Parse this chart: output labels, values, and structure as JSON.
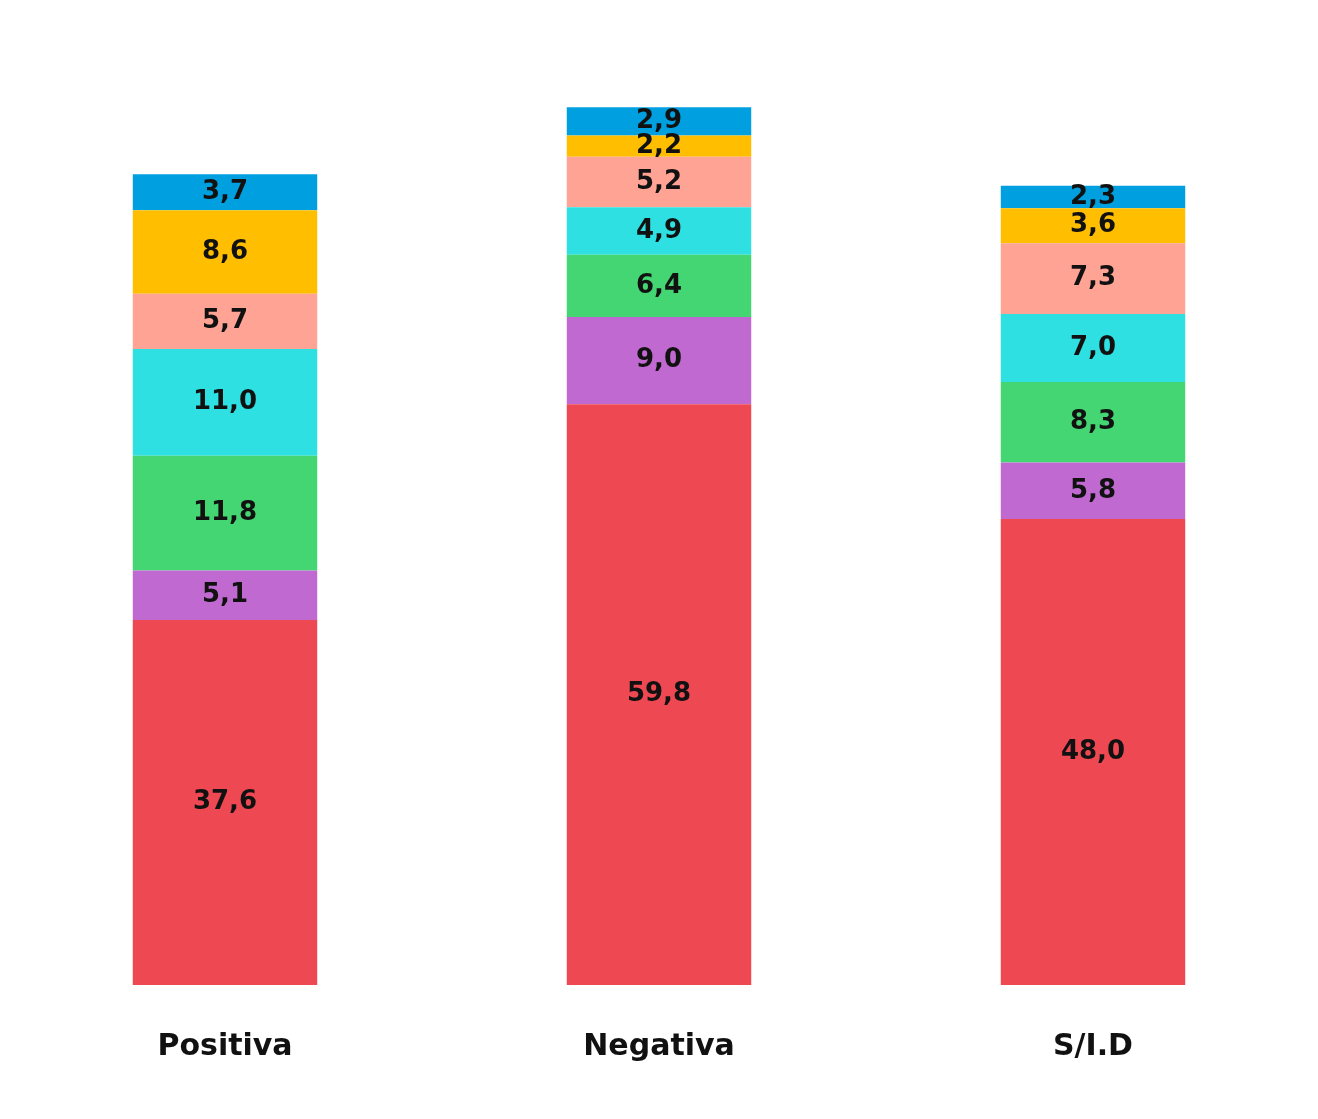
{
  "chart_data": {
    "type": "bar",
    "stacked": true,
    "categories": [
      "Positiva",
      "Negativa",
      "S/I.D"
    ],
    "series": [
      {
        "color": "#ee4953",
        "values": [
          37.6,
          59.8,
          48.0
        ],
        "value_labels": [
          "37,6",
          "59,8",
          "48,0"
        ]
      },
      {
        "color": "#bf69d1",
        "values": [
          5.1,
          9.0,
          5.8
        ],
        "value_labels": [
          "5,1",
          "9,0",
          "5,8"
        ]
      },
      {
        "color": "#43d672",
        "values": [
          11.8,
          6.4,
          8.3
        ],
        "value_labels": [
          "11,8",
          "6,4",
          "8,3"
        ]
      },
      {
        "color": "#2fe0e3",
        "values": [
          11.0,
          4.9,
          7.0
        ],
        "value_labels": [
          "11,0",
          "4,9",
          "7,0"
        ]
      },
      {
        "color": "#ffa395",
        "values": [
          5.7,
          5.2,
          7.3
        ],
        "value_labels": [
          "5,7",
          "5,2",
          "7,3"
        ]
      },
      {
        "color": "#ffbf00",
        "values": [
          8.6,
          2.2,
          3.6
        ],
        "value_labels": [
          "8,6",
          "2,2",
          "3,6"
        ]
      },
      {
        "color": "#009fdf",
        "values": [
          3.7,
          2.9,
          2.3
        ],
        "value_labels": [
          "3,7",
          "2,9",
          "2,3"
        ]
      }
    ],
    "legend": false,
    "grid": false
  }
}
